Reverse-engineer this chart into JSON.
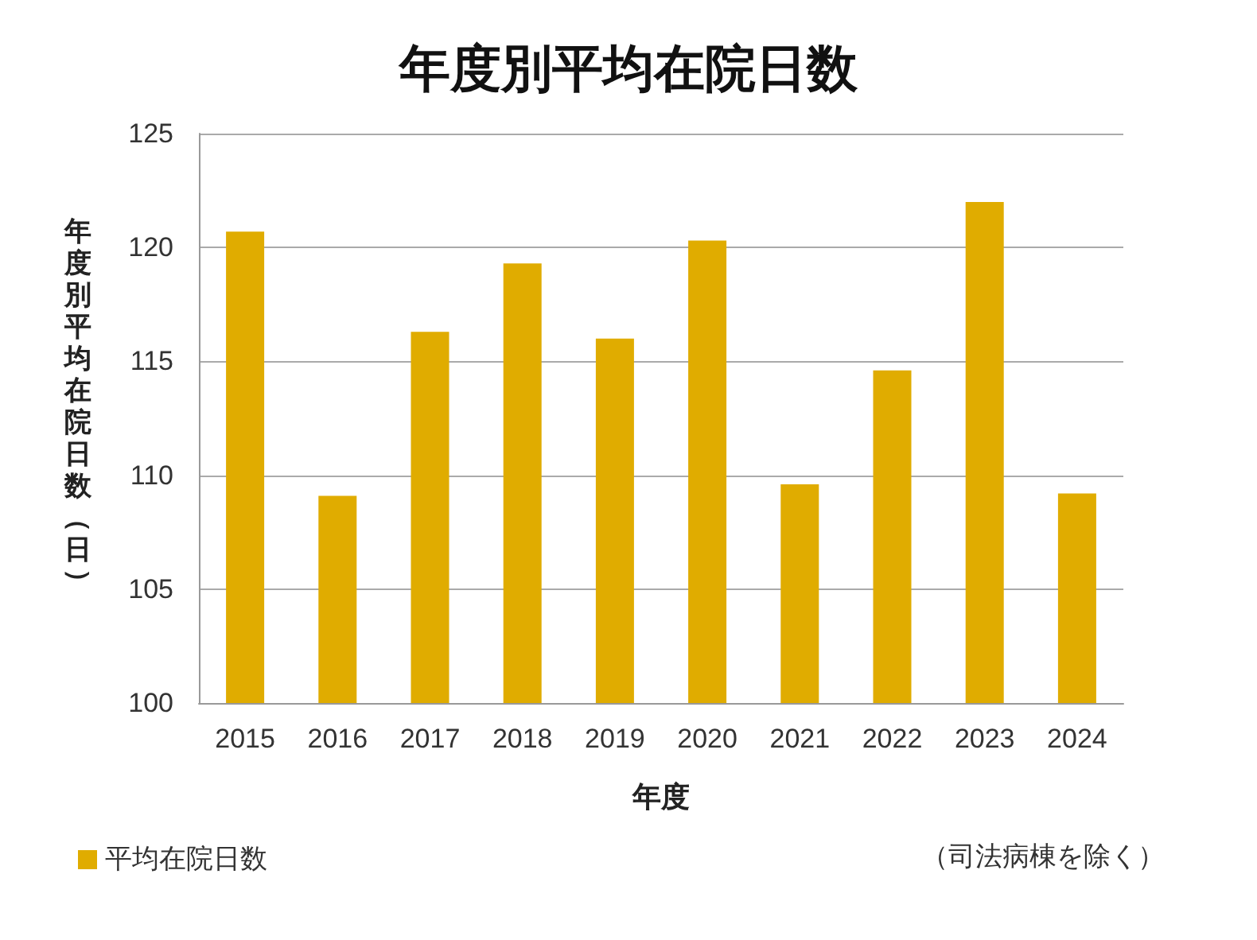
{
  "chart_data": {
    "type": "bar",
    "title": "年度別平均在院日数",
    "xlabel": "年度",
    "ylabel": "年度別平均在院日数（日）",
    "categories": [
      "2015",
      "2016",
      "2017",
      "2018",
      "2019",
      "2020",
      "2021",
      "2022",
      "2023",
      "2024"
    ],
    "series": [
      {
        "name": "平均在院日数",
        "color": "#e0ac00",
        "values": [
          120.7,
          109.1,
          116.3,
          119.3,
          116.0,
          120.3,
          109.6,
          114.6,
          122.0,
          109.2
        ]
      }
    ],
    "ylim": [
      100,
      125
    ],
    "yticks": [
      100,
      105,
      110,
      115,
      120,
      125
    ],
    "grid": "y",
    "legend": "bottom left",
    "annotations": [
      "（司法病棟を除く）"
    ]
  }
}
